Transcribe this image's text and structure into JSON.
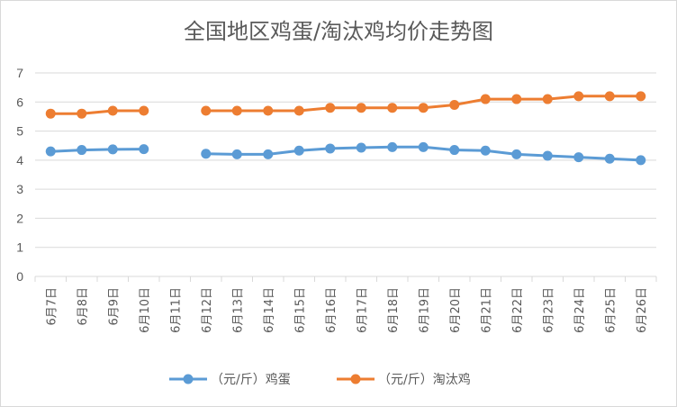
{
  "chart_data": {
    "type": "line",
    "title": "全国地区鸡蛋/淘汰鸡均价走势图",
    "categories": [
      "6月7日",
      "6月8日",
      "6月9日",
      "6月10日",
      "6月11日",
      "6月12日",
      "6月13日",
      "6月14日",
      "6月15日",
      "6月16日",
      "6月17日",
      "6月18日",
      "6月19日",
      "6月20日",
      "6月21日",
      "6月22日",
      "6月23日",
      "6月24日",
      "6月25日",
      "6月26日"
    ],
    "series": [
      {
        "name": "（元/斤）鸡蛋",
        "color": "#5b9bd5",
        "values": [
          4.3,
          4.35,
          4.37,
          4.38,
          null,
          4.22,
          4.2,
          4.2,
          4.33,
          4.4,
          4.43,
          4.45,
          4.45,
          4.35,
          4.33,
          4.2,
          4.15,
          4.1,
          4.05,
          4.0
        ]
      },
      {
        "name": "（元/斤）淘汰鸡",
        "color": "#ed7d31",
        "values": [
          5.6,
          5.6,
          5.7,
          5.7,
          null,
          5.7,
          5.7,
          5.7,
          5.7,
          5.8,
          5.8,
          5.8,
          5.8,
          5.9,
          6.1,
          6.1,
          6.1,
          6.2,
          6.2,
          6.2
        ]
      }
    ],
    "ylim": [
      0,
      7
    ],
    "yticks": [
      0,
      1,
      2,
      3,
      4,
      5,
      6,
      7
    ],
    "grid": true,
    "legend": "bottom-center"
  }
}
